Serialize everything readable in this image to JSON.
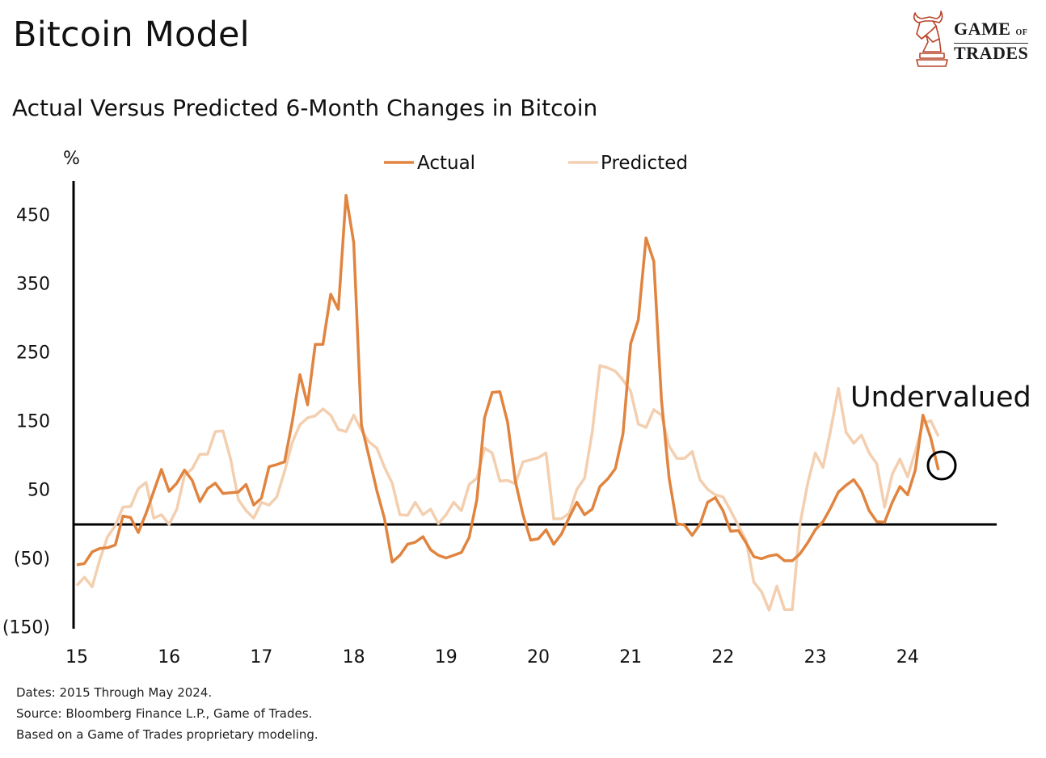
{
  "header": {
    "title": "Bitcoin Model",
    "subtitle": "Actual Versus Predicted 6-Month Changes in Bitcoin",
    "logo_text": "GAME OF TRADES"
  },
  "footer": {
    "line1": "Dates: 2015 Through May 2024.",
    "line2": "Source: Bloomberg Finance L.P., Game of Trades.",
    "line3": "Based on a Game of Trades proprietary modeling."
  },
  "chart_data": {
    "type": "line",
    "title": "Actual Versus Predicted 6-Month Changes in Bitcoin",
    "ylabel": "%",
    "xlabel": "",
    "ylim": [
      -150,
      500
    ],
    "xlim": [
      "2015-01",
      "2024-12"
    ],
    "grid": false,
    "legend": "top-center",
    "y_ticks": [
      450,
      350,
      250,
      150,
      50,
      -50,
      -150
    ],
    "y_tick_labels": [
      "450",
      "350",
      "250",
      "150",
      "50",
      "(50)",
      "(150)"
    ],
    "x_ticks": [
      "2015-01",
      "2016-01",
      "2017-01",
      "2018-01",
      "2019-01",
      "2020-01",
      "2021-01",
      "2022-01",
      "2023-01",
      "2024-01"
    ],
    "x_tick_labels": [
      "15",
      "16",
      "17",
      "18",
      "19",
      "20",
      "21",
      "22",
      "23",
      "24"
    ],
    "reference_line": 0,
    "annotation": {
      "text": "Undervalued",
      "target": "2024-05"
    },
    "colors": {
      "Actual": "#e0843f",
      "Predicted": "#f3cfb0",
      "axis": "#000000"
    },
    "x": [
      "2015-01",
      "2015-02",
      "2015-03",
      "2015-04",
      "2015-05",
      "2015-06",
      "2015-07",
      "2015-08",
      "2015-09",
      "2015-10",
      "2015-11",
      "2015-12",
      "2016-01",
      "2016-02",
      "2016-03",
      "2016-04",
      "2016-05",
      "2016-06",
      "2016-07",
      "2016-08",
      "2016-09",
      "2016-10",
      "2016-11",
      "2016-12",
      "2017-01",
      "2017-02",
      "2017-03",
      "2017-04",
      "2017-05",
      "2017-06",
      "2017-07",
      "2017-08",
      "2017-09",
      "2017-10",
      "2017-11",
      "2017-12",
      "2018-01",
      "2018-02",
      "2018-03",
      "2018-04",
      "2018-05",
      "2018-06",
      "2018-07",
      "2018-08",
      "2018-09",
      "2018-10",
      "2018-11",
      "2018-12",
      "2019-01",
      "2019-02",
      "2019-03",
      "2019-04",
      "2019-05",
      "2019-06",
      "2019-07",
      "2019-08",
      "2019-09",
      "2019-10",
      "2019-11",
      "2019-12",
      "2020-01",
      "2020-02",
      "2020-03",
      "2020-04",
      "2020-05",
      "2020-06",
      "2020-07",
      "2020-08",
      "2020-09",
      "2020-10",
      "2020-11",
      "2020-12",
      "2021-01",
      "2021-02",
      "2021-03",
      "2021-04",
      "2021-05",
      "2021-06",
      "2021-07",
      "2021-08",
      "2021-09",
      "2021-10",
      "2021-11",
      "2021-12",
      "2022-01",
      "2022-02",
      "2022-03",
      "2022-04",
      "2022-05",
      "2022-06",
      "2022-07",
      "2022-08",
      "2022-09",
      "2022-10",
      "2022-11",
      "2022-12",
      "2023-01",
      "2023-02",
      "2023-03",
      "2023-04",
      "2023-05",
      "2023-06",
      "2023-07",
      "2023-08",
      "2023-09",
      "2023-10",
      "2023-11",
      "2023-12",
      "2024-01",
      "2024-02",
      "2024-03",
      "2024-04",
      "2024-05"
    ],
    "series": [
      {
        "name": "Actual",
        "values": [
          -60,
          -58,
          -41,
          -36,
          -35,
          -31,
          11,
          9,
          -13,
          15,
          47,
          79,
          47,
          59,
          78,
          63,
          32,
          51,
          59,
          44,
          45,
          46,
          57,
          27,
          37,
          83,
          86,
          90,
          148,
          217,
          173,
          261,
          261,
          334,
          312,
          478,
          409,
          144,
          97,
          48,
          7,
          -56,
          -46,
          -30,
          -27,
          -19,
          -38,
          -46,
          -50,
          -46,
          -42,
          -20,
          35,
          154,
          191,
          192,
          148,
          62,
          13,
          -24,
          -22,
          -9,
          -30,
          -15,
          9,
          31,
          13,
          21,
          54,
          65,
          80,
          131,
          262,
          297,
          416,
          382,
          180,
          66,
          0,
          -2,
          -17,
          -1,
          31,
          38,
          19,
          -11,
          -10,
          -28,
          -48,
          -51,
          -47,
          -45,
          -54,
          -54,
          -44,
          -28,
          -9,
          3,
          23,
          46,
          56,
          64,
          48,
          19,
          3,
          2,
          31,
          54,
          42,
          78,
          158,
          125,
          78
        ]
      },
      {
        "name": "Predicted",
        "values": [
          -90,
          -78,
          -92,
          -52,
          -19,
          -3,
          24,
          25,
          51,
          60,
          8,
          13,
          -1,
          21,
          70,
          80,
          101,
          101,
          134,
          135,
          94,
          35,
          19,
          8,
          31,
          27,
          39,
          76,
          118,
          144,
          154,
          157,
          167,
          158,
          137,
          134,
          158,
          136,
          119,
          110,
          82,
          59,
          13,
          12,
          31,
          13,
          21,
          0,
          13,
          31,
          19,
          57,
          66,
          110,
          103,
          62,
          63,
          58,
          90,
          93,
          96,
          103,
          7,
          7,
          15,
          50,
          66,
          133,
          230,
          227,
          222,
          209,
          193,
          145,
          140,
          166,
          158,
          113,
          95,
          95,
          105,
          64,
          50,
          42,
          39,
          19,
          -3,
          -24,
          -85,
          -99,
          -126,
          -91,
          -125,
          -125,
          -1,
          58,
          103,
          82,
          136,
          197,
          133,
          117,
          129,
          103,
          87,
          24,
          72,
          94,
          68,
          105,
          146,
          150,
          127
        ]
      }
    ]
  }
}
